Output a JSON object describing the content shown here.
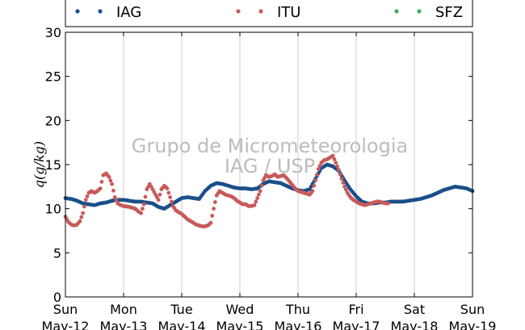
{
  "chart_data": {
    "type": "scatter",
    "ylabel": "q(g/kg)",
    "ylim": [
      0,
      30
    ],
    "yticks": [
      0,
      5,
      10,
      15,
      20,
      25,
      30
    ],
    "xlim": [
      0,
      7
    ],
    "x_unit": "days since Sun May-12",
    "xticks": [
      {
        "day": "Sun",
        "date": "May-12"
      },
      {
        "day": "Mon",
        "date": "May-13"
      },
      {
        "day": "Tue",
        "date": "May-14"
      },
      {
        "day": "Wed",
        "date": "May-15"
      },
      {
        "day": "Thu",
        "date": "May-16"
      },
      {
        "day": "Fri",
        "date": "May-17"
      },
      {
        "day": "Sat",
        "date": "May-18"
      },
      {
        "day": "Sun",
        "date": "May-19"
      }
    ],
    "grid": "vertical",
    "legend_position": "top",
    "watermark": [
      "Grupo de Micrometeorologia",
      "IAG / USP"
    ],
    "series": [
      {
        "name": "IAG",
        "color": "#1a4f8a",
        "points": [
          [
            0.0,
            11.2
          ],
          [
            0.1,
            11.1
          ],
          [
            0.2,
            10.9
          ],
          [
            0.3,
            10.6
          ],
          [
            0.4,
            10.5
          ],
          [
            0.5,
            10.4
          ],
          [
            0.6,
            10.6
          ],
          [
            0.7,
            10.7
          ],
          [
            0.8,
            10.9
          ],
          [
            0.9,
            11.0
          ],
          [
            1.0,
            11.0
          ],
          [
            1.1,
            10.9
          ],
          [
            1.2,
            10.8
          ],
          [
            1.3,
            10.8
          ],
          [
            1.4,
            10.7
          ],
          [
            1.5,
            10.6
          ],
          [
            1.6,
            10.2
          ],
          [
            1.7,
            10.0
          ],
          [
            1.8,
            10.4
          ],
          [
            1.9,
            10.8
          ],
          [
            2.0,
            11.2
          ],
          [
            2.1,
            11.3
          ],
          [
            2.2,
            11.2
          ],
          [
            2.3,
            11.1
          ],
          [
            2.4,
            12.0
          ],
          [
            2.5,
            12.6
          ],
          [
            2.6,
            12.9
          ],
          [
            2.7,
            12.8
          ],
          [
            2.8,
            12.6
          ],
          [
            2.9,
            12.4
          ],
          [
            3.0,
            12.3
          ],
          [
            3.1,
            12.3
          ],
          [
            3.2,
            12.2
          ],
          [
            3.3,
            12.3
          ],
          [
            3.4,
            12.8
          ],
          [
            3.5,
            13.1
          ],
          [
            3.6,
            13.0
          ],
          [
            3.7,
            12.9
          ],
          [
            3.8,
            12.6
          ],
          [
            3.9,
            12.3
          ],
          [
            4.0,
            12.1
          ],
          [
            4.1,
            12.0
          ],
          [
            4.2,
            12.2
          ],
          [
            4.3,
            13.4
          ],
          [
            4.4,
            14.6
          ],
          [
            4.5,
            15.0
          ],
          [
            4.6,
            14.8
          ],
          [
            4.7,
            14.3
          ],
          [
            4.8,
            13.2
          ],
          [
            4.9,
            12.2
          ],
          [
            5.0,
            11.4
          ],
          [
            5.1,
            10.8
          ],
          [
            5.2,
            10.6
          ],
          [
            5.3,
            10.6
          ],
          [
            5.4,
            10.7
          ],
          [
            5.5,
            10.7
          ],
          [
            5.6,
            10.8
          ],
          [
            5.7,
            10.8
          ],
          [
            5.8,
            10.8
          ],
          [
            5.9,
            10.9
          ],
          [
            6.0,
            11.0
          ],
          [
            6.1,
            11.1
          ],
          [
            6.2,
            11.3
          ],
          [
            6.3,
            11.5
          ],
          [
            6.4,
            11.8
          ],
          [
            6.5,
            12.1
          ],
          [
            6.6,
            12.3
          ],
          [
            6.7,
            12.5
          ],
          [
            6.8,
            12.4
          ],
          [
            6.9,
            12.3
          ],
          [
            7.0,
            12.0
          ]
        ]
      },
      {
        "name": "ITU",
        "color": "#c85a5a",
        "points": [
          [
            0.0,
            9.1
          ],
          [
            0.05,
            8.5
          ],
          [
            0.1,
            8.2
          ],
          [
            0.15,
            8.1
          ],
          [
            0.2,
            8.2
          ],
          [
            0.25,
            8.6
          ],
          [
            0.3,
            9.5
          ],
          [
            0.35,
            11.0
          ],
          [
            0.4,
            11.8
          ],
          [
            0.45,
            12.0
          ],
          [
            0.5,
            11.8
          ],
          [
            0.55,
            12.0
          ],
          [
            0.6,
            12.3
          ],
          [
            0.65,
            13.8
          ],
          [
            0.7,
            14.0
          ],
          [
            0.75,
            13.6
          ],
          [
            0.8,
            12.8
          ],
          [
            0.85,
            11.3
          ],
          [
            0.9,
            10.6
          ],
          [
            0.95,
            10.4
          ],
          [
            1.0,
            10.3
          ],
          [
            1.1,
            10.2
          ],
          [
            1.2,
            10.0
          ],
          [
            1.25,
            9.7
          ],
          [
            1.3,
            9.5
          ],
          [
            1.35,
            10.5
          ],
          [
            1.4,
            12.2
          ],
          [
            1.45,
            12.8
          ],
          [
            1.5,
            12.2
          ],
          [
            1.55,
            11.6
          ],
          [
            1.6,
            11.0
          ],
          [
            1.65,
            12.2
          ],
          [
            1.7,
            12.6
          ],
          [
            1.75,
            12.3
          ],
          [
            1.8,
            11.3
          ],
          [
            1.85,
            10.3
          ],
          [
            1.9,
            9.8
          ],
          [
            1.95,
            9.6
          ],
          [
            2.0,
            9.4
          ],
          [
            2.05,
            9.1
          ],
          [
            2.1,
            8.8
          ],
          [
            2.15,
            8.6
          ],
          [
            2.2,
            8.4
          ],
          [
            2.25,
            8.2
          ],
          [
            2.3,
            8.1
          ],
          [
            2.35,
            8.0
          ],
          [
            2.4,
            8.0
          ],
          [
            2.45,
            8.1
          ],
          [
            2.5,
            8.4
          ],
          [
            2.55,
            10.0
          ],
          [
            2.6,
            11.5
          ],
          [
            2.65,
            12.0
          ],
          [
            2.7,
            11.8
          ],
          [
            2.75,
            11.6
          ],
          [
            2.8,
            11.5
          ],
          [
            2.85,
            11.4
          ],
          [
            2.9,
            11.2
          ],
          [
            2.95,
            10.9
          ],
          [
            3.0,
            10.7
          ],
          [
            3.05,
            10.5
          ],
          [
            3.1,
            10.5
          ],
          [
            3.15,
            10.3
          ],
          [
            3.2,
            10.3
          ],
          [
            3.25,
            10.4
          ],
          [
            3.3,
            11.2
          ],
          [
            3.35,
            12.0
          ],
          [
            3.4,
            13.2
          ],
          [
            3.45,
            13.8
          ],
          [
            3.5,
            13.6
          ],
          [
            3.55,
            13.7
          ],
          [
            3.6,
            13.9
          ],
          [
            3.65,
            13.6
          ],
          [
            3.7,
            13.7
          ],
          [
            3.75,
            13.8
          ],
          [
            3.8,
            13.5
          ],
          [
            3.85,
            13.1
          ],
          [
            3.9,
            12.7
          ],
          [
            3.95,
            12.3
          ],
          [
            4.0,
            12.0
          ],
          [
            4.05,
            11.9
          ],
          [
            4.1,
            11.8
          ],
          [
            4.15,
            11.7
          ],
          [
            4.2,
            11.6
          ],
          [
            4.25,
            12.0
          ],
          [
            4.3,
            13.2
          ],
          [
            4.35,
            14.5
          ],
          [
            4.4,
            15.2
          ],
          [
            4.45,
            15.5
          ],
          [
            4.5,
            15.6
          ],
          [
            4.55,
            15.8
          ],
          [
            4.6,
            16.0
          ],
          [
            4.65,
            15.2
          ],
          [
            4.7,
            14.4
          ],
          [
            4.75,
            13.4
          ],
          [
            4.8,
            12.5
          ],
          [
            4.85,
            11.8
          ],
          [
            4.9,
            11.3
          ],
          [
            4.95,
            11.0
          ],
          [
            5.0,
            10.8
          ],
          [
            5.05,
            10.6
          ],
          [
            5.1,
            10.5
          ],
          [
            5.15,
            10.4
          ],
          [
            5.2,
            10.5
          ],
          [
            5.25,
            10.6
          ],
          [
            5.3,
            10.7
          ],
          [
            5.35,
            10.8
          ],
          [
            5.4,
            10.8
          ],
          [
            5.45,
            10.7
          ],
          [
            5.5,
            10.6
          ],
          [
            5.55,
            10.6
          ]
        ]
      },
      {
        "name": "SFZ",
        "color": "#3aaa6a",
        "points": []
      }
    ]
  }
}
